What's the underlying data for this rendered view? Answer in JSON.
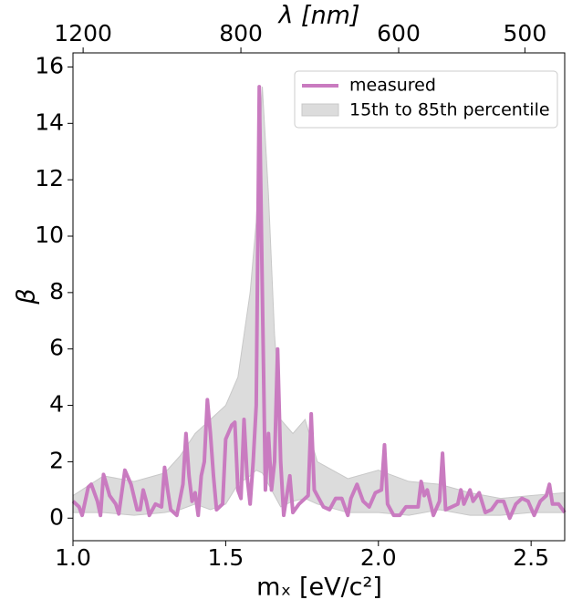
{
  "chart_data": {
    "type": "line",
    "xlabel": "mₓ [eV/c²]",
    "ylabel": "β",
    "x2label": "λ [nm]",
    "xlim": [
      1.0,
      2.61
    ],
    "ylim": [
      -0.8,
      16.5
    ],
    "xticks": [
      {
        "value": 1.0,
        "label": "1.0"
      },
      1.5,
      {
        "value": 2.0,
        "label": "2.0"
      },
      2.5
    ],
    "yticks": [
      0,
      2,
      4,
      6,
      8,
      10,
      12,
      14,
      16
    ],
    "x2ticks": [
      {
        "value": 1.0332,
        "label": "1200"
      },
      {
        "value": 1.5498,
        "label": "800"
      },
      {
        "value": 2.0664,
        "label": "600"
      },
      {
        "value": 2.4797,
        "label": "500"
      }
    ],
    "legend": "upper right",
    "series": [
      {
        "name": "measured",
        "color": "#c97bc0",
        "x": [
          1.0,
          1.02,
          1.03,
          1.05,
          1.06,
          1.08,
          1.09,
          1.1,
          1.12,
          1.14,
          1.15,
          1.17,
          1.19,
          1.21,
          1.22,
          1.23,
          1.24,
          1.25,
          1.27,
          1.29,
          1.3,
          1.31,
          1.32,
          1.34,
          1.36,
          1.37,
          1.38,
          1.39,
          1.4,
          1.41,
          1.42,
          1.43,
          1.44,
          1.45,
          1.46,
          1.47,
          1.48,
          1.49,
          1.5,
          1.52,
          1.53,
          1.54,
          1.55,
          1.56,
          1.57,
          1.58,
          1.59,
          1.6,
          1.61,
          1.62,
          1.63,
          1.64,
          1.65,
          1.66,
          1.67,
          1.68,
          1.69,
          1.71,
          1.72,
          1.74,
          1.75,
          1.77,
          1.78,
          1.79,
          1.8,
          1.82,
          1.84,
          1.86,
          1.88,
          1.9,
          1.91,
          1.93,
          1.95,
          1.97,
          1.99,
          2.01,
          2.02,
          2.03,
          2.05,
          2.07,
          2.09,
          2.11,
          2.13,
          2.14,
          2.15,
          2.16,
          2.18,
          2.2,
          2.21,
          2.22,
          2.24,
          2.26,
          2.27,
          2.28,
          2.3,
          2.31,
          2.33,
          2.35,
          2.37,
          2.39,
          2.41,
          2.43,
          2.45,
          2.47,
          2.49,
          2.51,
          2.53,
          2.55,
          2.56,
          2.57,
          2.59,
          2.61
        ],
        "values": [
          0.6,
          0.4,
          0.1,
          1.1,
          1.2,
          0.6,
          0.1,
          1.55,
          0.8,
          0.5,
          0.15,
          1.7,
          1.2,
          0.3,
          0.3,
          1.0,
          0.6,
          0.1,
          0.5,
          0.4,
          1.8,
          1.0,
          0.3,
          0.1,
          1.2,
          3.0,
          1.5,
          0.6,
          0.9,
          0.1,
          1.5,
          2.0,
          4.2,
          3.0,
          1.5,
          0.3,
          0.4,
          0.5,
          2.8,
          3.3,
          3.4,
          1.0,
          0.7,
          3.5,
          1.5,
          0.5,
          2.0,
          4.0,
          15.3,
          8.0,
          1.0,
          3.0,
          1.0,
          2.0,
          6.0,
          2.0,
          0.1,
          1.5,
          0.2,
          0.5,
          0.6,
          0.8,
          3.7,
          1.0,
          0.8,
          0.4,
          0.3,
          0.7,
          0.7,
          0.1,
          0.7,
          1.2,
          0.6,
          0.4,
          0.9,
          1.0,
          2.6,
          0.5,
          0.1,
          0.1,
          0.4,
          0.4,
          0.4,
          1.3,
          0.8,
          1.0,
          0.1,
          0.6,
          2.3,
          0.3,
          0.4,
          0.5,
          1.0,
          0.5,
          1.0,
          0.6,
          0.9,
          0.2,
          0.3,
          0.6,
          0.6,
          0.0,
          0.5,
          0.7,
          0.6,
          0.1,
          0.6,
          0.8,
          1.2,
          0.5,
          0.5,
          0.2
        ]
      }
    ],
    "band": {
      "name": "15th to 85th percentile",
      "color": "#dcdcdc",
      "x": [
        1.0,
        1.1,
        1.2,
        1.3,
        1.35,
        1.4,
        1.45,
        1.5,
        1.54,
        1.58,
        1.6,
        1.62,
        1.64,
        1.66,
        1.68,
        1.72,
        1.76,
        1.8,
        1.9,
        2.0,
        2.1,
        2.2,
        2.3,
        2.4,
        2.5,
        2.61
      ],
      "lower": [
        0.2,
        0.2,
        0.1,
        0.2,
        0.3,
        0.5,
        0.3,
        0.5,
        1.2,
        1.5,
        1.7,
        1.6,
        1.2,
        0.8,
        0.4,
        0.6,
        0.7,
        0.5,
        0.2,
        0.2,
        0.1,
        0.3,
        0.1,
        0.1,
        0.2,
        0.2
      ],
      "upper": [
        0.8,
        1.5,
        1.3,
        1.6,
        2.2,
        3.0,
        3.5,
        4.0,
        5.0,
        8.0,
        10.5,
        15.3,
        11.5,
        6.5,
        3.5,
        3.0,
        3.5,
        2.0,
        1.4,
        1.7,
        1.3,
        1.2,
        0.9,
        0.7,
        0.8,
        0.9
      ]
    }
  }
}
